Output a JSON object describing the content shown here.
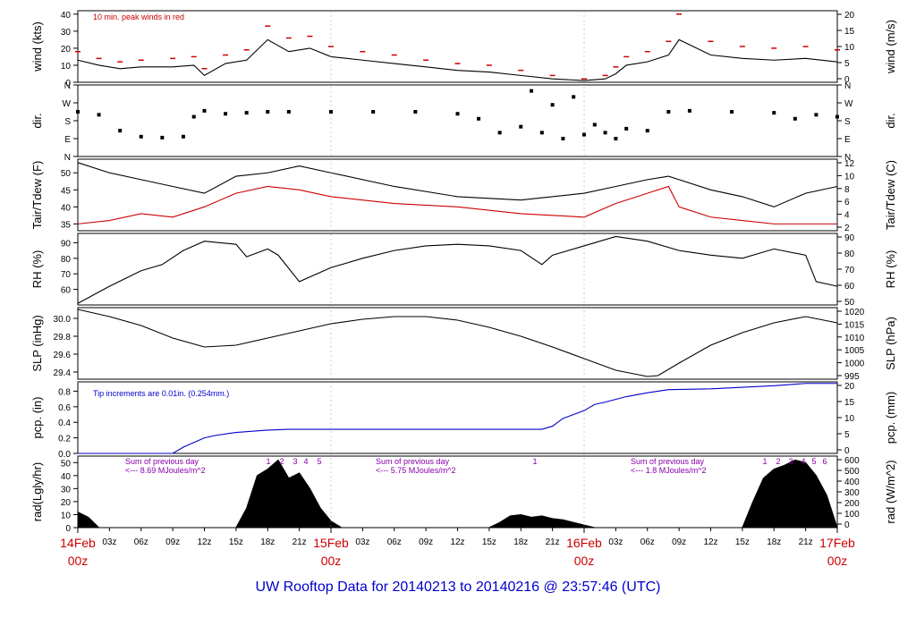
{
  "title": "UW Rooftop Data for 20140213  to  20140216 @ 23:57:46  (UTC)",
  "colors": {
    "black": "#000000",
    "red": "#cc0000",
    "blue": "#0000cc",
    "purple": "#8800aa",
    "frame": "#000000"
  },
  "time_axis": {
    "tick_labels": [
      "03z",
      "06z",
      "09z",
      "12z",
      "15z",
      "18z",
      "21z",
      "03z",
      "06z",
      "09z",
      "12z",
      "15z",
      "18z",
      "21z",
      "03z",
      "06z",
      "09z",
      "12z",
      "15z",
      "18z",
      "21z"
    ],
    "day_labels": [
      {
        "date": "14Feb",
        "hour": "00z"
      },
      {
        "date": "15Feb",
        "hour": "00z"
      },
      {
        "date": "16Feb",
        "hour": "00z"
      },
      {
        "date": "17Feb",
        "hour": "00z"
      }
    ]
  },
  "chart_data": [
    {
      "type": "line",
      "title": "wind",
      "ylabel": "wind (kts)",
      "ylabel_right": "wind (m/s)",
      "yticks_left": [
        "0",
        "10",
        "20",
        "30",
        "40"
      ],
      "yticks_right": [
        "0",
        "5",
        "10",
        "15",
        "20"
      ],
      "ylim": [
        0,
        42
      ],
      "annotation": "10 min. peak winds in red",
      "series": [
        {
          "name": "wind speed (kts)",
          "color": "black",
          "x": [
            0,
            2,
            4,
            6,
            9,
            11,
            12,
            14,
            16,
            18,
            20,
            22,
            24,
            27,
            30,
            33,
            36,
            39,
            42,
            45,
            48,
            50,
            51,
            52,
            54,
            56,
            57,
            60,
            63,
            66,
            69,
            72
          ],
          "values": [
            13,
            10,
            8,
            9,
            9,
            10,
            4,
            11,
            13,
            25,
            18,
            20,
            15,
            13,
            11,
            9,
            7,
            6,
            4,
            2,
            1,
            2,
            5,
            10,
            12,
            16,
            25,
            16,
            14,
            13,
            14,
            12
          ]
        },
        {
          "name": "10 min. peak winds (kts)",
          "color": "red",
          "x": [
            0,
            2,
            4,
            6,
            9,
            11,
            12,
            14,
            16,
            18,
            20,
            22,
            24,
            27,
            30,
            33,
            36,
            39,
            42,
            45,
            48,
            50,
            51,
            52,
            54,
            56,
            57,
            60,
            63,
            66,
            69,
            72
          ],
          "values": [
            18,
            14,
            12,
            13,
            14,
            15,
            8,
            16,
            19,
            33,
            26,
            27,
            21,
            18,
            16,
            13,
            11,
            10,
            7,
            4,
            2,
            4,
            9,
            15,
            18,
            24,
            40,
            24,
            21,
            20,
            21,
            19
          ]
        }
      ]
    },
    {
      "type": "scatter",
      "title": "dir.",
      "ylabel": "dir.",
      "ylabel_right": "dir.",
      "yticks_left": [
        "N",
        "E",
        "S",
        "W",
        "N"
      ],
      "yticks_right": [
        "N",
        "E",
        "S",
        "W",
        "N"
      ],
      "ylim": [
        0,
        360
      ],
      "series": [
        {
          "name": "wind direction (deg)",
          "color": "black",
          "x": [
            0,
            2,
            4,
            6,
            8,
            10,
            11,
            12,
            14,
            16,
            18,
            20,
            24,
            28,
            32,
            36,
            38,
            40,
            42,
            43,
            44,
            45,
            46,
            47,
            48,
            49,
            50,
            51,
            52,
            54,
            56,
            58,
            62,
            66,
            68,
            70,
            72
          ],
          "values": [
            225,
            210,
            130,
            100,
            95,
            100,
            200,
            230,
            215,
            220,
            225,
            225,
            225,
            225,
            225,
            215,
            190,
            120,
            150,
            330,
            120,
            260,
            90,
            300,
            110,
            160,
            120,
            90,
            140,
            130,
            225,
            230,
            225,
            220,
            190,
            210,
            200
          ]
        }
      ]
    },
    {
      "type": "line",
      "title": "Tair/Tdew",
      "ylabel": "Tair/Tdew (F)",
      "ylabel_right": "Tair/Tdew (C)",
      "yticks_left": [
        "35",
        "40",
        "45",
        "50"
      ],
      "yticks_right": [
        "2",
        "4",
        "6",
        "8",
        "10",
        "12"
      ],
      "ylim": [
        33,
        54
      ],
      "series": [
        {
          "name": "Tair (F)",
          "color": "black",
          "x": [
            0,
            3,
            6,
            9,
            12,
            15,
            18,
            21,
            24,
            30,
            36,
            42,
            48,
            51,
            54,
            56,
            57,
            60,
            63,
            66,
            69,
            72
          ],
          "values": [
            53,
            50,
            48,
            46,
            44,
            49,
            50,
            52,
            50,
            46,
            43,
            42,
            44,
            46,
            48,
            49,
            48,
            45,
            43,
            40,
            44,
            46
          ]
        },
        {
          "name": "Tdew (F)",
          "color": "red",
          "x": [
            0,
            3,
            6,
            9,
            12,
            15,
            18,
            21,
            24,
            30,
            36,
            42,
            48,
            51,
            54,
            56,
            57,
            60,
            63,
            66,
            69,
            72
          ],
          "values": [
            35,
            36,
            38,
            37,
            40,
            44,
            46,
            45,
            43,
            41,
            40,
            38,
            37,
            41,
            44,
            46,
            40,
            37,
            36,
            35,
            35,
            35
          ]
        }
      ]
    },
    {
      "type": "line",
      "title": "RH",
      "ylabel": "RH (%)",
      "ylabel_right": "RH (%)",
      "yticks_left": [
        "60",
        "70",
        "80",
        "90"
      ],
      "yticks_right": [
        "50",
        "60",
        "70",
        "80",
        "90"
      ],
      "ylim": [
        50,
        96
      ],
      "series": [
        {
          "name": "RH (%)",
          "color": "black",
          "x": [
            0,
            3,
            6,
            8,
            10,
            12,
            15,
            16,
            18,
            19,
            21,
            24,
            27,
            30,
            33,
            36,
            39,
            42,
            44,
            45,
            48,
            51,
            54,
            57,
            60,
            63,
            66,
            69,
            70,
            72
          ],
          "values": [
            51,
            62,
            72,
            76,
            85,
            91,
            89,
            81,
            86,
            82,
            65,
            74,
            80,
            85,
            88,
            89,
            88,
            85,
            76,
            82,
            88,
            94,
            91,
            85,
            82,
            80,
            86,
            82,
            65,
            62
          ]
        }
      ]
    },
    {
      "type": "line",
      "title": "SLP",
      "ylabel": "SLP (inHg)",
      "ylabel_right": "SLP (hPa)",
      "yticks_left": [
        "29.4",
        "29.6",
        "29.8",
        "30.0"
      ],
      "yticks_right": [
        "995",
        "1000",
        "1005",
        "1010",
        "1015",
        "1020"
      ],
      "ylim": [
        29.32,
        30.12
      ],
      "series": [
        {
          "name": "SLP (inHg)",
          "color": "black",
          "x": [
            0,
            3,
            6,
            9,
            12,
            15,
            18,
            21,
            24,
            27,
            30,
            33,
            36,
            39,
            42,
            45,
            48,
            51,
            54,
            55,
            57,
            60,
            63,
            66,
            69,
            72
          ],
          "values": [
            30.1,
            30.02,
            29.92,
            29.78,
            29.68,
            29.7,
            29.78,
            29.86,
            29.94,
            29.99,
            30.02,
            30.02,
            29.98,
            29.9,
            29.8,
            29.68,
            29.55,
            29.42,
            29.35,
            29.36,
            29.5,
            29.7,
            29.84,
            29.95,
            30.02,
            29.95
          ]
        }
      ]
    },
    {
      "type": "line",
      "title": "pcp.",
      "ylabel": "pcp. (in)",
      "ylabel_right": "pcp. (mm)",
      "yticks_left": [
        "0.0",
        "0.2",
        "0.4",
        "0.6",
        "0.8"
      ],
      "yticks_right": [
        "0",
        "5",
        "10",
        "15",
        "20"
      ],
      "ylim": [
        0,
        0.92
      ],
      "annotation": "Tip increments are 0.01in. (0.254mm.)",
      "series": [
        {
          "name": "cumulative precipitation (in)",
          "color": "blue",
          "x": [
            0,
            9,
            10,
            12,
            13,
            15,
            18,
            20,
            27,
            30,
            36,
            42,
            44,
            45,
            46,
            48,
            49,
            50,
            52,
            54,
            56,
            60,
            63,
            66,
            69,
            72
          ],
          "values": [
            0,
            0,
            0.08,
            0.2,
            0.23,
            0.27,
            0.3,
            0.31,
            0.31,
            0.31,
            0.31,
            0.31,
            0.31,
            0.35,
            0.45,
            0.55,
            0.63,
            0.66,
            0.73,
            0.78,
            0.82,
            0.83,
            0.85,
            0.87,
            0.9,
            0.9
          ]
        }
      ]
    },
    {
      "type": "area",
      "title": "rad",
      "ylabel": "rad(Lgly/hr)",
      "ylabel_right": "rad (W/m^2)",
      "yticks_left": [
        "0",
        "10",
        "20",
        "30",
        "40",
        "50"
      ],
      "yticks_right": [
        "0",
        "100",
        "200",
        "300",
        "400",
        "500",
        "600"
      ],
      "ylim": [
        0,
        55
      ],
      "annotations": [
        "Sum of previous day",
        "<--- 8.69 MJoules/m^2",
        "Sum of previous day",
        "<--- 5.75 MJoules/m^2",
        "Sum of previous day",
        "<--- 1.8 MJoules/m^2"
      ],
      "markers": [
        "1",
        "2",
        "3",
        "4",
        "5",
        "1",
        "1",
        "2",
        "3",
        "4",
        "5",
        "6"
      ],
      "series": [
        {
          "name": "solar radiation (Lgly/hr)",
          "color": "black",
          "x": [
            0,
            1,
            2,
            15,
            16,
            17,
            18,
            19,
            20,
            21,
            22,
            23,
            24,
            25,
            39,
            40,
            41,
            42,
            43,
            44,
            45,
            46,
            47,
            48,
            49,
            63,
            64,
            65,
            66,
            67,
            68,
            69,
            70,
            71,
            72
          ],
          "values": [
            12,
            8,
            0,
            0,
            15,
            40,
            45,
            52,
            38,
            42,
            30,
            15,
            5,
            0,
            0,
            4,
            9,
            10,
            8,
            9,
            7,
            6,
            4,
            2,
            0,
            0,
            20,
            38,
            45,
            48,
            52,
            50,
            40,
            25,
            0
          ]
        }
      ]
    }
  ]
}
